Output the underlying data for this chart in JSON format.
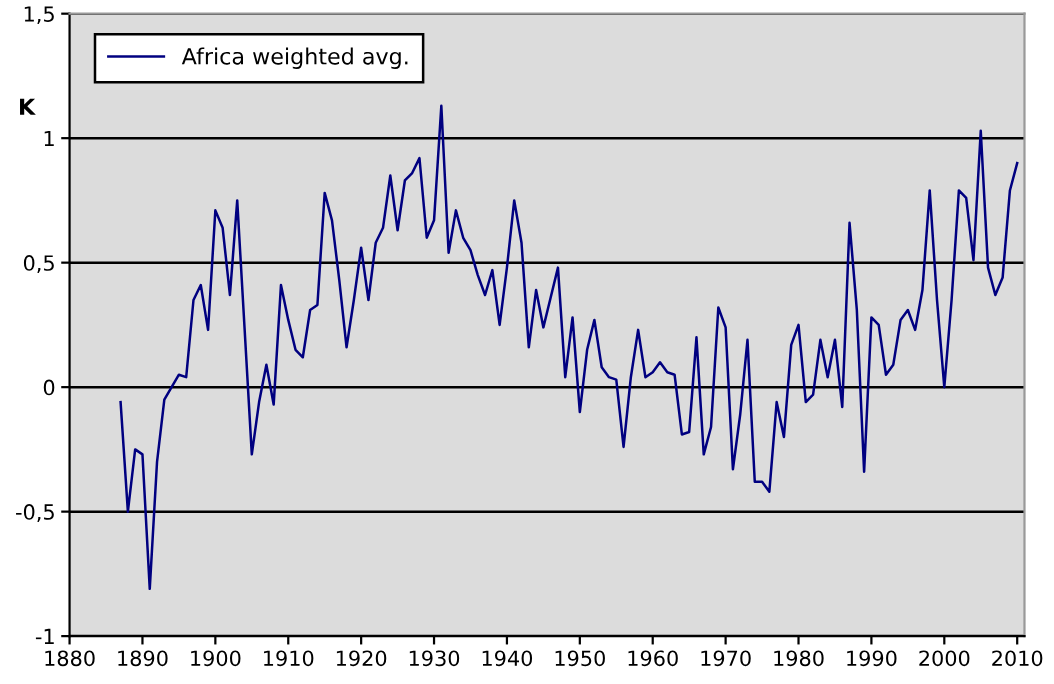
{
  "chart_data": {
    "type": "line",
    "ylabel": "K",
    "legend": "top left",
    "grid": "y",
    "marker": "none",
    "line_style": "solid",
    "xlim": [
      1880,
      2011
    ],
    "xticks": [
      1880,
      1890,
      1900,
      1910,
      1920,
      1930,
      1940,
      1950,
      1960,
      1970,
      1980,
      1990,
      2000,
      2010
    ],
    "ylim": [
      -1,
      1.5
    ],
    "yticks": [
      {
        "value": -1,
        "label": "-1"
      },
      {
        "value": -0.5,
        "label": "-0,5"
      },
      {
        "value": 0,
        "label": "0"
      },
      {
        "value": 0.5,
        "label": "0,5"
      },
      {
        "value": 1,
        "label": "1"
      },
      {
        "value": 1.5,
        "label": "1,5"
      }
    ],
    "series": [
      {
        "name": "Africa weighted avg.",
        "color": "#000080",
        "x": [
          1887,
          1888,
          1889,
          1890,
          1891,
          1892,
          1893,
          1894,
          1895,
          1896,
          1897,
          1898,
          1899,
          1900,
          1901,
          1902,
          1903,
          1904,
          1905,
          1906,
          1907,
          1908,
          1909,
          1910,
          1911,
          1912,
          1913,
          1914,
          1915,
          1916,
          1917,
          1918,
          1919,
          1920,
          1921,
          1922,
          1923,
          1924,
          1925,
          1926,
          1927,
          1928,
          1929,
          1930,
          1931,
          1932,
          1933,
          1934,
          1935,
          1936,
          1937,
          1938,
          1939,
          1940,
          1941,
          1942,
          1943,
          1944,
          1945,
          1946,
          1947,
          1948,
          1949,
          1950,
          1951,
          1952,
          1953,
          1954,
          1955,
          1956,
          1957,
          1958,
          1959,
          1960,
          1961,
          1962,
          1963,
          1964,
          1965,
          1966,
          1967,
          1968,
          1969,
          1970,
          1971,
          1972,
          1973,
          1974,
          1975,
          1976,
          1977,
          1978,
          1979,
          1980,
          1981,
          1982,
          1983,
          1984,
          1985,
          1986,
          1987,
          1988,
          1989,
          1990,
          1991,
          1992,
          1993,
          1994,
          1995,
          1996,
          1997,
          1998,
          1999,
          2000,
          2001,
          2002,
          2003,
          2004,
          2005,
          2006,
          2007,
          2008,
          2009,
          2010
        ],
        "values": [
          -0.06,
          -0.5,
          -0.25,
          -0.27,
          -0.81,
          -0.3,
          -0.05,
          0.0,
          0.05,
          0.04,
          0.35,
          0.41,
          0.23,
          0.71,
          0.64,
          0.37,
          0.75,
          0.24,
          -0.27,
          -0.06,
          0.09,
          -0.07,
          0.41,
          0.27,
          0.15,
          0.12,
          0.31,
          0.33,
          0.78,
          0.67,
          0.43,
          0.16,
          0.35,
          0.56,
          0.35,
          0.58,
          0.64,
          0.85,
          0.63,
          0.83,
          0.86,
          0.92,
          0.6,
          0.67,
          1.13,
          0.54,
          0.71,
          0.6,
          0.55,
          0.45,
          0.37,
          0.47,
          0.25,
          0.48,
          0.75,
          0.58,
          0.16,
          0.39,
          0.24,
          0.36,
          0.48,
          0.04,
          0.28,
          -0.1,
          0.15,
          0.27,
          0.08,
          0.04,
          0.03,
          -0.24,
          0.04,
          0.23,
          0.04,
          0.06,
          0.1,
          0.06,
          0.05,
          -0.19,
          -0.18,
          0.2,
          -0.27,
          -0.16,
          0.32,
          0.24,
          -0.33,
          -0.11,
          0.19,
          -0.38,
          -0.38,
          -0.42,
          -0.06,
          -0.2,
          0.17,
          0.25,
          -0.06,
          -0.03,
          0.19,
          0.04,
          0.19,
          -0.08,
          0.66,
          0.31,
          -0.34,
          0.28,
          0.25,
          0.05,
          0.09,
          0.27,
          0.31,
          0.23,
          0.39,
          0.79,
          0.35,
          0.0,
          0.35,
          0.79,
          0.76,
          0.51,
          1.03,
          0.48,
          0.37,
          0.44,
          0.79,
          0.9
        ]
      }
    ]
  }
}
